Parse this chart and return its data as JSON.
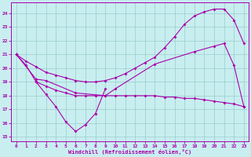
{
  "bg_color": "#c8eef0",
  "line_color": "#aa00aa",
  "grid_color": "#99cccc",
  "xlabel": "Windchill (Refroidissement éolien,°C)",
  "xlim": [
    -0.5,
    23.5
  ],
  "ylim": [
    14.7,
    24.8
  ],
  "yticks": [
    15,
    16,
    17,
    18,
    19,
    20,
    21,
    22,
    23,
    24
  ],
  "xticks": [
    0,
    1,
    2,
    3,
    4,
    5,
    6,
    7,
    8,
    9,
    10,
    11,
    12,
    13,
    14,
    15,
    16,
    17,
    18,
    19,
    20,
    21,
    22,
    23
  ],
  "curves": [
    {
      "x": [
        0,
        1,
        2,
        3,
        4,
        5,
        6,
        7,
        8,
        9
      ],
      "y": [
        21.0,
        20.2,
        19.0,
        18.1,
        17.2,
        16.1,
        15.4,
        15.9,
        16.7,
        18.5
      ]
    },
    {
      "x": [
        2,
        3,
        4,
        5,
        6,
        7,
        8,
        9,
        10,
        11,
        12,
        13,
        14,
        15,
        16,
        17,
        18,
        19,
        20,
        21,
        22,
        23
      ],
      "y": [
        19.0,
        18.7,
        18.4,
        18.2,
        18.0,
        18.0,
        18.0,
        18.0,
        18.0,
        18.0,
        18.0,
        18.0,
        18.0,
        17.9,
        17.9,
        17.8,
        17.8,
        17.7,
        17.6,
        17.5,
        17.4,
        17.2
      ]
    },
    {
      "x": [
        0,
        1,
        2,
        3,
        4,
        5,
        6,
        7,
        8,
        9,
        10,
        11,
        12,
        13,
        14,
        15,
        16,
        17,
        18,
        19,
        20,
        21,
        22,
        23
      ],
      "y": [
        21.0,
        20.5,
        20.1,
        19.7,
        19.5,
        19.3,
        19.1,
        19.0,
        19.0,
        19.1,
        19.3,
        19.6,
        20.0,
        20.4,
        20.8,
        21.5,
        22.3,
        23.2,
        23.8,
        24.1,
        24.3,
        24.3,
        23.5,
        21.8
      ]
    },
    {
      "x": [
        0,
        2,
        3,
        6,
        9,
        10,
        14,
        18,
        20,
        21,
        22,
        23
      ],
      "y": [
        21.0,
        19.2,
        19.1,
        18.2,
        18.0,
        18.5,
        20.3,
        21.2,
        21.6,
        21.8,
        20.2,
        17.2
      ]
    }
  ]
}
